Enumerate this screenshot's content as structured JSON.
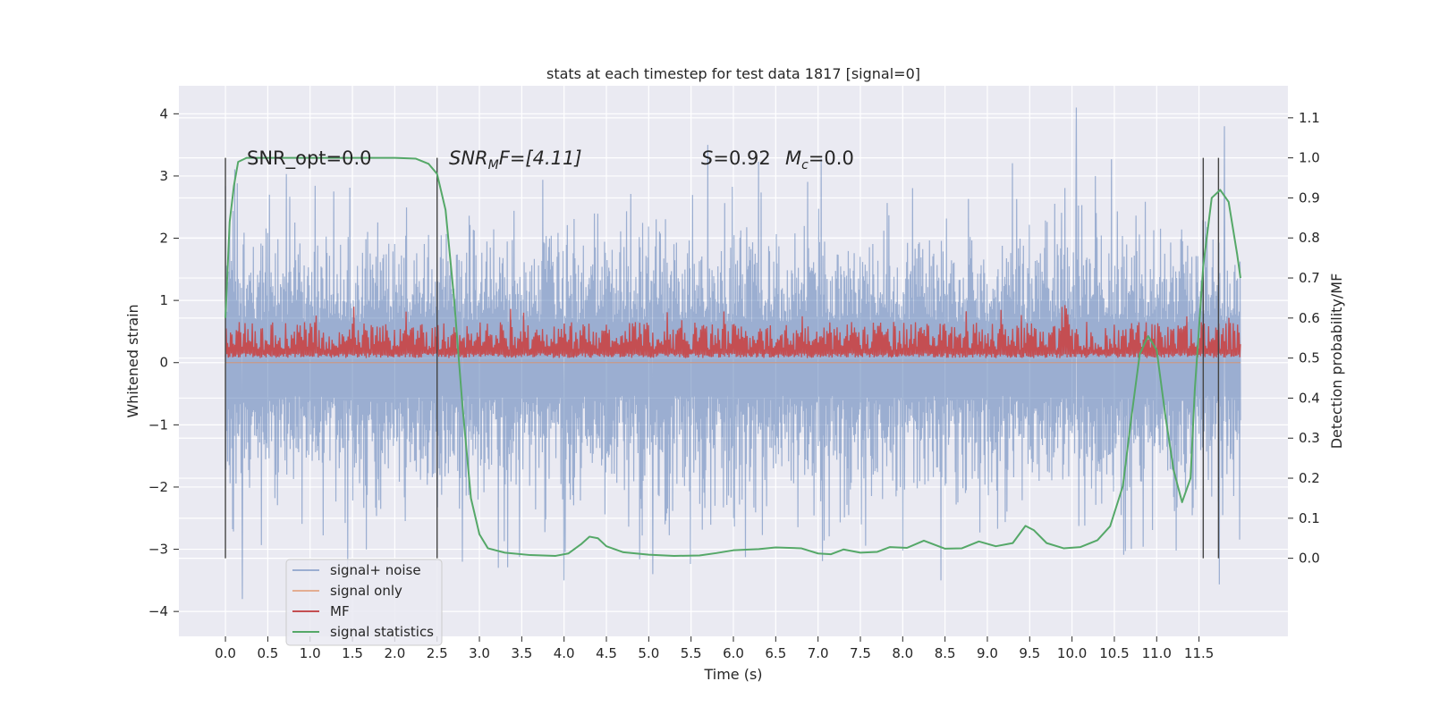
{
  "chart_data": {
    "type": "line",
    "title": "stats at each timestep for test data 1817 [signal=0]",
    "xlabel": "Time (s)",
    "ylabel_left": "Whitened strain",
    "ylabel_right": "Detection probability/MF",
    "xlim": [
      -0.55,
      12.55
    ],
    "ylim_left": [
      -4.4,
      4.45
    ],
    "ylim_right": [
      -0.195,
      1.18
    ],
    "x_ticks": [
      "0.0",
      "0.5",
      "1.0",
      "1.5",
      "2.0",
      "2.5",
      "3.0",
      "3.5",
      "4.0",
      "4.5",
      "5.0",
      "5.5",
      "6.0",
      "6.5",
      "7.0",
      "7.5",
      "8.0",
      "8.5",
      "9.0",
      "9.5",
      "10.0",
      "10.5",
      "11.0",
      "11.5"
    ],
    "y_ticks_left": [
      "4",
      "3",
      "2",
      "1",
      "0",
      "−1",
      "−2",
      "−3",
      "−4"
    ],
    "y_ticks_right": [
      "1.1",
      "1.0",
      "0.9",
      "0.8",
      "0.7",
      "0.6",
      "0.5",
      "0.4",
      "0.3",
      "0.2",
      "0.1",
      "0.0"
    ],
    "grid": true,
    "background": "#eaeaf2",
    "legend_position": "lower-left",
    "annotations": {
      "snr_opt": "SNR_opt=0.0",
      "snr_mf_sym": "SNR",
      "snr_mf_sub": "M",
      "snr_mf_rest": "F=[4.11]",
      "s_sym": "S",
      "s_rest": "=0.92",
      "mc_sym": "M",
      "mc_sub": "c",
      "mc_rest": "=0.0"
    },
    "vertical_markers_s": [
      0.0,
      2.5,
      11.55,
      11.73
    ],
    "series": [
      {
        "name": "signal+ noise",
        "color": "#4c72b0",
        "axis": "left",
        "description_range": [
          -3.8,
          4.1
        ],
        "x_range": [
          0.0,
          11.99
        ],
        "band": [
          -1.2,
          1.35
        ],
        "peaks": [
          [
            0.2,
            -3.8
          ],
          [
            5.7,
            3.5
          ],
          [
            10.05,
            4.1
          ],
          [
            11.8,
            3.8
          ],
          [
            4.0,
            -3.5
          ],
          [
            5.05,
            -3.4
          ],
          [
            8.45,
            -3.5
          ],
          [
            2.8,
            -3.2
          ]
        ]
      },
      {
        "name": "signal only",
        "color": "#dd8452",
        "axis": "left",
        "values": [
          [
            0.0,
            0.0
          ],
          [
            11.99,
            0.0
          ]
        ]
      },
      {
        "name": "MF",
        "color": "#c44e52",
        "axis": "right",
        "x_range": [
          0.0,
          11.99
        ],
        "baseline": 0.5,
        "typical_peak": 0.57,
        "max_peak": 0.64
      },
      {
        "name": "signal statistics",
        "color": "#55a868",
        "axis": "right",
        "points": [
          [
            0.0,
            0.6
          ],
          [
            0.05,
            0.84
          ],
          [
            0.1,
            0.93
          ],
          [
            0.15,
            0.99
          ],
          [
            0.25,
            1.0
          ],
          [
            1.0,
            1.0
          ],
          [
            2.0,
            1.0
          ],
          [
            2.25,
            0.998
          ],
          [
            2.4,
            0.985
          ],
          [
            2.5,
            0.96
          ],
          [
            2.6,
            0.87
          ],
          [
            2.7,
            0.65
          ],
          [
            2.8,
            0.38
          ],
          [
            2.9,
            0.15
          ],
          [
            3.0,
            0.06
          ],
          [
            3.1,
            0.025
          ],
          [
            3.3,
            0.014
          ],
          [
            3.6,
            0.008
          ],
          [
            3.9,
            0.006
          ],
          [
            4.05,
            0.012
          ],
          [
            4.2,
            0.035
          ],
          [
            4.3,
            0.054
          ],
          [
            4.4,
            0.05
          ],
          [
            4.5,
            0.03
          ],
          [
            4.7,
            0.015
          ],
          [
            5.0,
            0.009
          ],
          [
            5.3,
            0.006
          ],
          [
            5.6,
            0.007
          ],
          [
            5.8,
            0.013
          ],
          [
            6.0,
            0.02
          ],
          [
            6.3,
            0.023
          ],
          [
            6.5,
            0.027
          ],
          [
            6.8,
            0.025
          ],
          [
            7.0,
            0.012
          ],
          [
            7.15,
            0.01
          ],
          [
            7.3,
            0.022
          ],
          [
            7.5,
            0.014
          ],
          [
            7.7,
            0.016
          ],
          [
            7.85,
            0.028
          ],
          [
            8.05,
            0.026
          ],
          [
            8.25,
            0.044
          ],
          [
            8.5,
            0.024
          ],
          [
            8.7,
            0.025
          ],
          [
            8.9,
            0.042
          ],
          [
            9.1,
            0.03
          ],
          [
            9.3,
            0.038
          ],
          [
            9.45,
            0.081
          ],
          [
            9.55,
            0.07
          ],
          [
            9.7,
            0.038
          ],
          [
            9.9,
            0.025
          ],
          [
            10.1,
            0.028
          ],
          [
            10.3,
            0.045
          ],
          [
            10.45,
            0.08
          ],
          [
            10.6,
            0.18
          ],
          [
            10.7,
            0.35
          ],
          [
            10.8,
            0.51
          ],
          [
            10.9,
            0.555
          ],
          [
            11.0,
            0.52
          ],
          [
            11.1,
            0.36
          ],
          [
            11.2,
            0.22
          ],
          [
            11.3,
            0.14
          ],
          [
            11.4,
            0.2
          ],
          [
            11.45,
            0.42
          ],
          [
            11.55,
            0.73
          ],
          [
            11.65,
            0.9
          ],
          [
            11.75,
            0.92
          ],
          [
            11.85,
            0.89
          ],
          [
            11.95,
            0.76
          ],
          [
            11.99,
            0.7
          ]
        ]
      }
    ]
  }
}
